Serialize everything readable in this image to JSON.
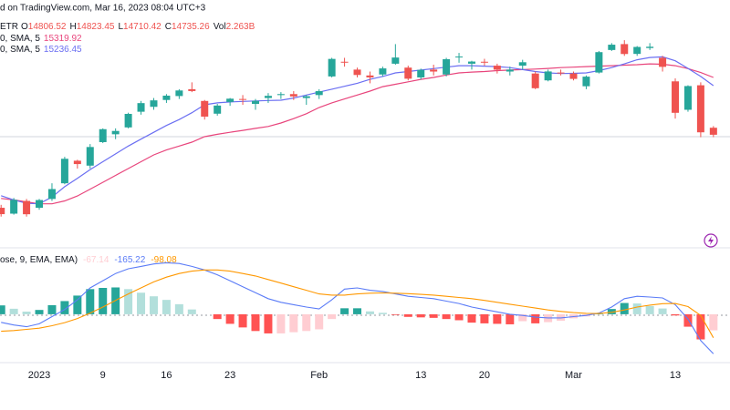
{
  "chart_data": [
    {
      "type": "candlestick",
      "title": "d on TradingView.com, Mar 16, 2023 08:04 UTC+3",
      "symbol": "ETR",
      "categories": [
        null,
        null,
        null,
        "2023",
        null,
        null,
        null,
        null,
        "9",
        null,
        null,
        null,
        null,
        "16",
        null,
        null,
        null,
        null,
        "23",
        null,
        null,
        null,
        null,
        null,
        null,
        "Feb",
        null,
        null,
        null,
        null,
        null,
        null,
        null,
        "13",
        null,
        null,
        null,
        null,
        "20",
        null,
        null,
        null,
        null,
        null,
        null,
        "Mar",
        null,
        null,
        null,
        null,
        null,
        null,
        null,
        "13",
        null,
        null,
        null
      ],
      "open": [
        13990,
        13930,
        14060,
        13990,
        14080,
        14240,
        14470,
        14420,
        14660,
        14740,
        14810,
        14970,
        15020,
        15090,
        15130,
        15200,
        15080,
        14950,
        15070,
        15100,
        15050,
        15110,
        15140,
        15150,
        15110,
        15140,
        15330,
        15480,
        15400,
        15340,
        15350,
        15460,
        15420,
        15320,
        15400,
        15350,
        15530,
        15460,
        15480,
        15440,
        15380,
        15440,
        15360,
        15290,
        15370,
        15360,
        15230,
        15370,
        15600,
        15660,
        15560,
        15620,
        15520,
        15280,
        14990,
        15240,
        14806.52
      ],
      "high": [
        14020,
        14090,
        14080,
        14080,
        14240,
        14510,
        14480,
        14640,
        14800,
        14800,
        14960,
        15080,
        15110,
        15150,
        15200,
        15270,
        15090,
        15050,
        15110,
        15140,
        15100,
        15160,
        15170,
        15180,
        15140,
        15200,
        15520,
        15520,
        15420,
        15380,
        15430,
        15660,
        15440,
        15410,
        15450,
        15520,
        15570,
        15490,
        15510,
        15460,
        15430,
        15500,
        15380,
        15400,
        15400,
        15380,
        15340,
        15590,
        15670,
        15700,
        15640,
        15670,
        15540,
        15310,
        15240,
        15270,
        14823.45
      ],
      "low": [
        13900,
        13920,
        13900,
        13970,
        14060,
        14230,
        14390,
        14390,
        14650,
        14690,
        14800,
        14940,
        14990,
        15060,
        15100,
        15170,
        14890,
        14930,
        15030,
        15040,
        14990,
        15060,
        15100,
        15090,
        15040,
        15100,
        15320,
        15430,
        15320,
        15260,
        15330,
        15450,
        15290,
        15300,
        15340,
        15330,
        15470,
        15400,
        15440,
        15360,
        15340,
        15400,
        15200,
        15280,
        15340,
        15290,
        15200,
        15360,
        15590,
        15540,
        15540,
        15600,
        15380,
        14900,
        14970,
        14710,
        14710.42
      ],
      "close": [
        13925,
        14071,
        13924,
        14069,
        14181,
        14490,
        14436,
        14610,
        14792,
        14774,
        14948,
        15058,
        15086,
        15134,
        15187,
        15181,
        14920,
        15033,
        15103,
        15093,
        15081,
        15132,
        15150,
        15126,
        15128,
        15180,
        15509,
        15476,
        15345,
        15320,
        15412,
        15523,
        15307,
        15397,
        15380,
        15506,
        15533,
        15482,
        15477,
        15399,
        15400,
        15475,
        15210,
        15381,
        15365,
        15305,
        15328,
        15578,
        15654,
        15559,
        15631,
        15633,
        15428,
        14959,
        15232,
        14760,
        14735.26
      ],
      "ohlc_labels": [
        "O",
        "H",
        "L",
        "C"
      ],
      "volume": {
        "label": "Vol",
        "value": "2.263B"
      },
      "up_color": "#26a69a",
      "down_color": "#ef5350",
      "ylim": [
        13600,
        16110
      ],
      "series": [
        {
          "name": "0, SMA, 5",
          "color": "#e8457c",
          "values": [
            14085,
            14070,
            14050,
            14030,
            14030,
            14060,
            14110,
            14180,
            14250,
            14320,
            14390,
            14460,
            14530,
            14580,
            14620,
            14660,
            14716,
            14740,
            14760,
            14780,
            14800,
            14820,
            14855,
            14900,
            14950,
            15013,
            15060,
            15100,
            15140,
            15180,
            15226,
            15250,
            15275,
            15300,
            15320,
            15345,
            15366,
            15375,
            15380,
            15390,
            15395,
            15400,
            15405,
            15412,
            15420,
            15425,
            15430,
            15435,
            15440,
            15445,
            15450,
            15458,
            15455,
            15440,
            15410,
            15370,
            15319.92
          ]
        },
        {
          "name": "0, SMA, 5",
          "color": "#6b6ff2",
          "values": [
            14113,
            14070,
            14035,
            14030,
            14100,
            14205,
            14290,
            14380,
            14460,
            14540,
            14620,
            14690,
            14760,
            14830,
            14890,
            14960,
            15041,
            15060,
            15070,
            15075,
            15080,
            15085,
            15087,
            15110,
            15140,
            15170,
            15200,
            15230,
            15260,
            15300,
            15330,
            15366,
            15380,
            15395,
            15410,
            15425,
            15440,
            15440,
            15435,
            15430,
            15420,
            15400,
            15380,
            15366,
            15360,
            15362,
            15366,
            15390,
            15420,
            15458,
            15500,
            15523,
            15530,
            15490,
            15412,
            15330,
            15236.45
          ]
        }
      ]
    },
    {
      "type": "macd",
      "name": "ose, 9, EMA, EMA)",
      "ylim": [
        -202,
        247
      ],
      "histogram": {
        "values": [
          37,
          23,
          11,
          18,
          38,
          55,
          78,
          105,
          110,
          112,
          105,
          90,
          75,
          60,
          42,
          20,
          0,
          -20,
          -40,
          -55,
          -70,
          -80,
          -80,
          -75,
          -70,
          -63,
          -20,
          25,
          25,
          12,
          6,
          -3,
          -11,
          -13,
          -15,
          -20,
          -25,
          -35,
          -38,
          -40,
          -42,
          -29,
          -38,
          -33,
          -27,
          -17,
          -9,
          2,
          22,
          47,
          45,
          34,
          24,
          -5,
          -52,
          -105,
          -67.14
        ],
        "colors": [
          "#26a69a",
          "#b2dfdb",
          "#ffcdd2",
          "#ff5252"
        ]
      },
      "series": [
        {
          "color": "#5b7cf7",
          "values": [
            -34,
            -45,
            -52,
            -40,
            -10,
            20,
            60,
            110,
            140,
            170,
            190,
            200,
            210,
            215,
            212,
            200,
            185,
            165,
            140,
            115,
            90,
            65,
            50,
            40,
            30,
            22,
            60,
            105,
            110,
            100,
            95,
            85,
            75,
            70,
            65,
            55,
            45,
            30,
            20,
            10,
            0,
            -5,
            -12,
            -15,
            -15,
            -10,
            -5,
            5,
            30,
            65,
            75,
            72,
            68,
            40,
            -20,
            -110,
            -165.22
          ]
        },
        {
          "color": "#ff9800",
          "values": [
            -71,
            -68,
            -63,
            -58,
            -48,
            -35,
            -18,
            5,
            30,
            58,
            85,
            110,
            135,
            155,
            170,
            180,
            185,
            185,
            180,
            170,
            160,
            145,
            130,
            115,
            100,
            85,
            80,
            80,
            85,
            88,
            89,
            88,
            86,
            83,
            80,
            75,
            70,
            65,
            58,
            50,
            42,
            34,
            26,
            18,
            12,
            7,
            4,
            3,
            8,
            18,
            30,
            38,
            44,
            45,
            32,
            -5,
            -98.08
          ]
        }
      ]
    }
  ]
}
